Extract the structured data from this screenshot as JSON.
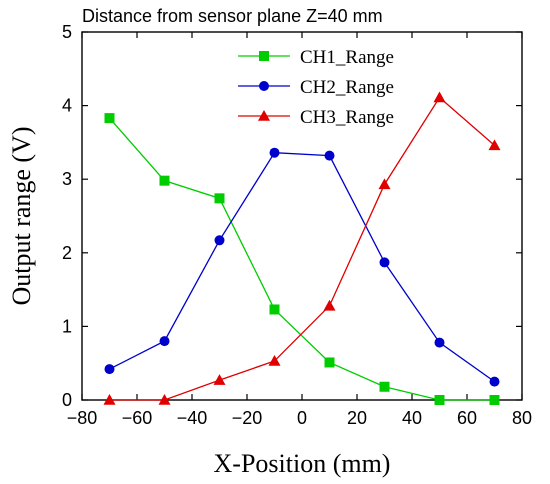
{
  "chart_data": {
    "type": "line",
    "annotation": "Distance from sensor plane Z=40 mm",
    "xlabel": "X-Position (mm)",
    "ylabel": "Output range (V)",
    "xlim": [
      -80,
      80
    ],
    "ylim": [
      0,
      5
    ],
    "x_ticks": [
      -80,
      -60,
      -40,
      -20,
      0,
      20,
      40,
      60,
      80
    ],
    "y_ticks": [
      0,
      1,
      2,
      3,
      4,
      5
    ],
    "grid": false,
    "legend_position": "top-center",
    "x": [
      -70,
      -50,
      -30,
      -10,
      10,
      30,
      50,
      70
    ],
    "series": [
      {
        "name": "CH1_Range",
        "color": "#00cc00",
        "marker": "square",
        "values": [
          3.83,
          2.98,
          2.74,
          1.23,
          0.51,
          0.18,
          0.0,
          0.0
        ]
      },
      {
        "name": "CH2_Range",
        "color": "#0000cc",
        "marker": "circle",
        "values": [
          0.42,
          0.8,
          2.17,
          3.36,
          3.32,
          1.87,
          0.78,
          0.25
        ]
      },
      {
        "name": "CH3_Range",
        "color": "#e00000",
        "marker": "triangle",
        "values": [
          0.0,
          0.0,
          0.27,
          0.53,
          1.28,
          2.93,
          4.11,
          3.46
        ]
      }
    ]
  }
}
